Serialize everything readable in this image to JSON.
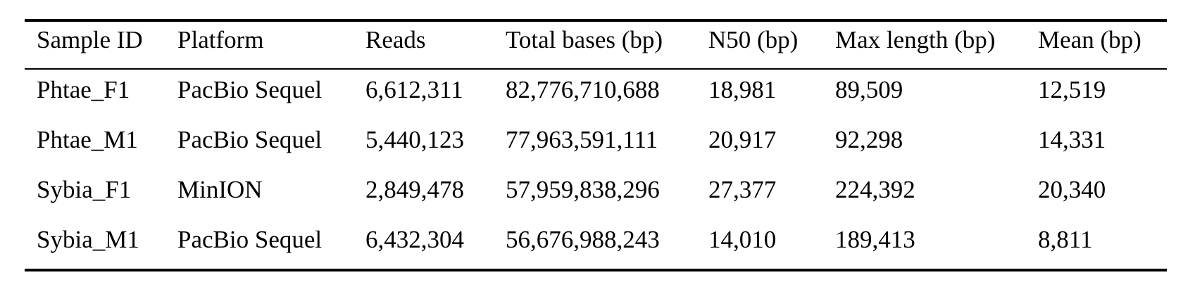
{
  "table": {
    "header": [
      "Sample ID",
      "Platform",
      "Reads",
      "Total bases (bp)",
      "N50 (bp)",
      "Max length (bp)",
      "Mean (bp)"
    ],
    "rows": [
      [
        "Phtae_F1",
        "PacBio Sequel",
        "6,612,311",
        "82,776,710,688",
        "18,981",
        "89,509",
        "12,519"
      ],
      [
        "Phtae_M1",
        "PacBio Sequel",
        "5,440,123",
        "77,963,591,111",
        "20,917",
        "92,298",
        "14,331"
      ],
      [
        "Sybia_F1",
        "MinION",
        "2,849,478",
        "57,959,838,296",
        "27,377",
        "224,392",
        "20,340"
      ],
      [
        "Sybia_M1",
        "PacBio Sequel",
        "6,432,304",
        "56,676,988,243",
        "14,010",
        "189,413",
        "8,811"
      ]
    ]
  }
}
